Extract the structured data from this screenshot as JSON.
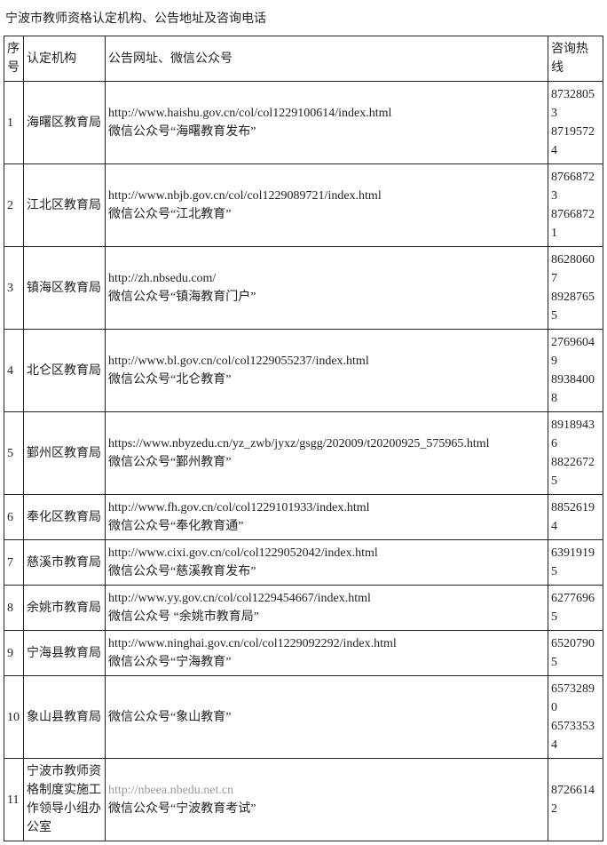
{
  "title": "宁波市教师资格认定机构、公告地址及咨询电话",
  "columns": {
    "seq": "序号",
    "institution": "认定机构",
    "url": "公告网址、微信公众号",
    "phone": "咨询热线"
  },
  "rows": [
    {
      "seq": "1",
      "institution": "海曙区教育局",
      "url1": "http://www.haishu.gov.cn/col/col1229100614/index.html",
      "url2": "微信公众号“海曙教育发布”",
      "phones": [
        "87328053",
        "87195724"
      ]
    },
    {
      "seq": "2",
      "institution": "江北区教育局",
      "url1": "http://www.nbjb.gov.cn/col/col1229089721/index.html",
      "url2": "微信公众号“江北教育”",
      "phones": [
        "87668723",
        "87668721"
      ]
    },
    {
      "seq": "3",
      "institution": "镇海区教育局",
      "url1": "http://zh.nbsedu.com/",
      "url2": "微信公众号“镇海教育门户”",
      "phones": [
        "86280607",
        "89287655"
      ]
    },
    {
      "seq": "4",
      "institution": "北仑区教育局",
      "url1": "http://www.bl.gov.cn/col/col1229055237/index.html",
      "url2": "微信公众号“北仑教育”",
      "phones": [
        "27696049",
        "89384008"
      ]
    },
    {
      "seq": "5",
      "institution": "鄞州区教育局",
      "url1": "https://www.nbyzedu.cn/yz_zwb/jyxz/gsgg/202009/t20200925_575965.html",
      "url2": "微信公众号“鄞州教育”",
      "phones": [
        "89189436",
        "88226725"
      ]
    },
    {
      "seq": "6",
      "institution": "奉化区教育局",
      "url1": "http://www.fh.gov.cn/col/col1229101933/index.html",
      "url2": "微信公众号“奉化教育通”",
      "phones": [
        "88526194"
      ]
    },
    {
      "seq": "7",
      "institution": "慈溪市教育局",
      "url1": "http://www.cixi.gov.cn/col/col1229052042/index.html",
      "url2": "微信公众号“慈溪教育发布”",
      "phones": [
        "63919195"
      ]
    },
    {
      "seq": "8",
      "institution": "余姚市教育局",
      "url1": "http://www.yy.gov.cn/col/col1229454667/index.html",
      "url2": "微信公众号 “余姚市教育局”",
      "phones": [
        "62776965"
      ]
    },
    {
      "seq": "9",
      "institution": "宁海县教育局",
      "url1": "http://www.ninghai.gov.cn/col/col1229092292/index.html",
      "url2": "微信公众号“宁海教育”",
      "phones": [
        "65207905"
      ]
    },
    {
      "seq": "10",
      "institution": "象山县教育局",
      "url1": "",
      "url2": "微信公众号“象山教育”",
      "phones": [
        "65732890",
        "65733534"
      ]
    },
    {
      "seq": "11",
      "institution": "宁波市教师资格制度实施工作领导小组办公室",
      "url1": "http://nbeea.nbedu.net.cn",
      "url1_faded": true,
      "url2": "微信公众号“宁波教育考试”",
      "phones": [
        "87266142"
      ]
    }
  ]
}
